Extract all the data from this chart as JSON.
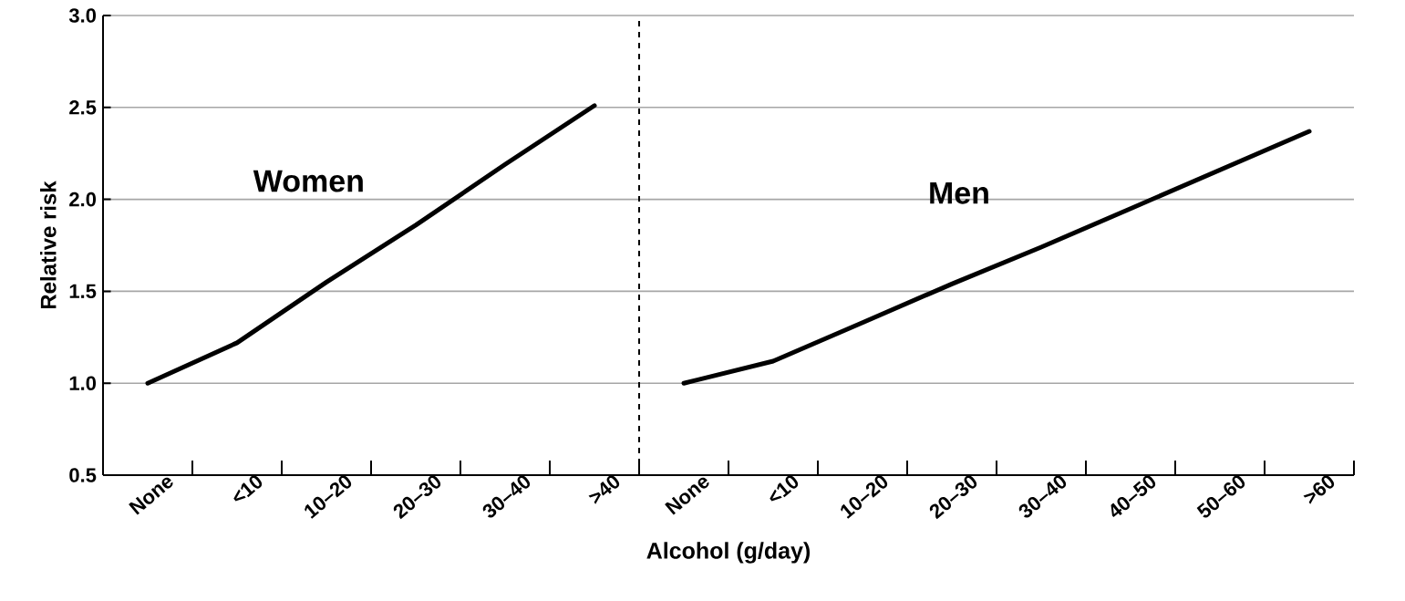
{
  "chart_data": [
    {
      "type": "line",
      "ylabel": "Relative risk",
      "categories": [
        "None",
        "<10",
        "10–20",
        "20–30",
        "30–40",
        ">40"
      ],
      "series": [
        {
          "name": "Women",
          "color": "#000000",
          "values": [
            1.0,
            1.22,
            1.55,
            1.86,
            2.19,
            2.51
          ]
        }
      ],
      "ylim": [
        0.5,
        3.0
      ],
      "yticks": [
        {
          "value": 0.5,
          "label": "0.5"
        },
        {
          "value": 1.0,
          "label": "1.0"
        },
        {
          "value": 1.5,
          "label": "1.5"
        },
        {
          "value": 2.0,
          "label": "2.0"
        },
        {
          "value": 2.5,
          "label": "2.5"
        },
        {
          "value": 3.0,
          "label": "3.0"
        }
      ],
      "grid": "y",
      "marker": "none",
      "line_style": "solid"
    },
    {
      "type": "line",
      "xlabel": "Alcohol (g/day)",
      "categories": [
        "None",
        "<10",
        "10–20",
        "20–30",
        "30–40",
        "40–50",
        "50–60",
        ">60"
      ],
      "series": [
        {
          "name": "Men",
          "color": "#000000",
          "values": [
            1.0,
            1.12,
            1.33,
            1.54,
            1.74,
            1.95,
            2.16,
            2.37
          ]
        }
      ],
      "ylim": [
        0.5,
        3.0
      ],
      "yticks": [
        {
          "value": 0.5,
          "label": null
        },
        {
          "value": 1.0,
          "label": null
        },
        {
          "value": 1.5,
          "label": null
        },
        {
          "value": 2.0,
          "label": null
        },
        {
          "value": 2.5,
          "label": null
        },
        {
          "value": 3.0,
          "label": null
        }
      ],
      "tick_labels": "x",
      "grid": "y",
      "marker": "none",
      "line_style": "solid"
    }
  ]
}
